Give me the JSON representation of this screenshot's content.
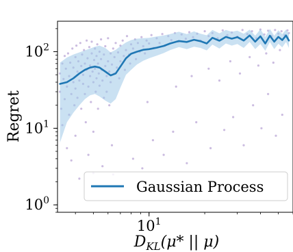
{
  "chart_data": {
    "type": "scatter",
    "x_scale": "log",
    "y_scale": "log",
    "xlabel": "D_KL(μ* || μ)",
    "ylabel": "Regret",
    "xlim": [
      3.2,
      60
    ],
    "ylim": [
      0.8,
      250
    ],
    "x_ticks": [
      {
        "value": 10,
        "base": "10",
        "exp": "1"
      }
    ],
    "y_ticks": [
      {
        "value": 1,
        "base": "10",
        "exp": "0"
      },
      {
        "value": 10,
        "base": "10",
        "exp": "1"
      },
      {
        "value": 100,
        "base": "10",
        "exp": "2"
      }
    ],
    "legend": {
      "position": "lower-right",
      "entries": [
        "Gaussian Process"
      ]
    },
    "colors": {
      "gp_line": "#1f77b4",
      "gp_band": "#9ec9e8",
      "scatter": "#b9a6d6"
    },
    "gp_mean": {
      "name": "Gaussian Process",
      "x": [
        3.3,
        3.6,
        3.9,
        4.2,
        4.5,
        4.8,
        5.1,
        5.4,
        5.8,
        6.2,
        6.6,
        7.0,
        7.5,
        8.0,
        8.6,
        9.3,
        10.0,
        11.0,
        12.0,
        13.0,
        14.5,
        16.0,
        17.5,
        19.0,
        20.5,
        22.0,
        24.0,
        26.0,
        28.0,
        30.0,
        32.5,
        35.0,
        37.5,
        40.0,
        42.5,
        45.0,
        47.5,
        50.0,
        52.5,
        55.0,
        57.0
      ],
      "y": [
        38,
        40,
        45,
        52,
        58,
        62,
        64,
        62,
        55,
        49,
        52,
        64,
        82,
        94,
        100,
        106,
        108,
        113,
        119,
        128,
        138,
        134,
        143,
        137,
        128,
        152,
        139,
        156,
        148,
        155,
        140,
        163,
        135,
        159,
        128,
        162,
        135,
        156,
        142,
        163,
        140
      ]
    },
    "gp_band": {
      "upper": [
        72,
        84,
        92,
        98,
        104,
        110,
        116,
        120,
        112,
        98,
        106,
        118,
        132,
        142,
        148,
        150,
        152,
        158,
        163,
        170,
        182,
        170,
        184,
        172,
        164,
        192,
        174,
        192,
        182,
        188,
        172,
        194,
        162,
        196,
        156,
        198,
        162,
        190,
        170,
        194,
        172
      ],
      "lower": [
        6.5,
        12,
        16,
        20,
        24,
        27,
        28,
        26,
        23,
        21,
        24,
        34,
        50,
        58,
        68,
        76,
        82,
        89,
        96,
        105,
        115,
        108,
        116,
        112,
        104,
        124,
        110,
        128,
        120,
        126,
        112,
        134,
        108,
        126,
        103,
        134,
        108,
        127,
        114,
        134,
        112
      ]
    },
    "scatter_points": [
      [
        3.3,
        30
      ],
      [
        3.3,
        52
      ],
      [
        3.35,
        18
      ],
      [
        3.4,
        70
      ],
      [
        3.4,
        11
      ],
      [
        3.45,
        44
      ],
      [
        3.5,
        88
      ],
      [
        3.5,
        24
      ],
      [
        3.55,
        60
      ],
      [
        3.6,
        35
      ],
      [
        3.6,
        5.5
      ],
      [
        3.65,
        95
      ],
      [
        3.7,
        48
      ],
      [
        3.7,
        15
      ],
      [
        3.75,
        72
      ],
      [
        3.8,
        28
      ],
      [
        3.8,
        3.8
      ],
      [
        3.85,
        110
      ],
      [
        3.9,
        40
      ],
      [
        3.9,
        62
      ],
      [
        3.95,
        20
      ],
      [
        4.0,
        85
      ],
      [
        4.0,
        33
      ],
      [
        4.0,
        8
      ],
      [
        4.05,
        120
      ],
      [
        4.1,
        55
      ],
      [
        4.1,
        25
      ],
      [
        4.15,
        75
      ],
      [
        4.2,
        42
      ],
      [
        4.2,
        2.2
      ],
      [
        4.25,
        130
      ],
      [
        4.3,
        65
      ],
      [
        4.3,
        18
      ],
      [
        4.35,
        92
      ],
      [
        4.4,
        38
      ],
      [
        4.4,
        50
      ],
      [
        4.45,
        105
      ],
      [
        4.5,
        28
      ],
      [
        4.5,
        70
      ],
      [
        4.55,
        12
      ],
      [
        4.6,
        140
      ],
      [
        4.6,
        58
      ],
      [
        4.65,
        82
      ],
      [
        4.7,
        35
      ],
      [
        4.7,
        4.5
      ],
      [
        4.75,
        115
      ],
      [
        4.8,
        48
      ],
      [
        4.8,
        66
      ],
      [
        4.85,
        22
      ],
      [
        4.9,
        95
      ],
      [
        4.9,
        135
      ],
      [
        4.95,
        55
      ],
      [
        5.0,
        40
      ],
      [
        5.0,
        9
      ],
      [
        5.05,
        78
      ],
      [
        5.1,
        60
      ],
      [
        5.1,
        110
      ],
      [
        5.15,
        30
      ],
      [
        5.2,
        88
      ],
      [
        5.2,
        45
      ],
      [
        5.25,
        125
      ],
      [
        5.3,
        70
      ],
      [
        5.3,
        18
      ],
      [
        5.35,
        52
      ],
      [
        5.4,
        100
      ],
      [
        5.4,
        36
      ],
      [
        5.5,
        80
      ],
      [
        5.5,
        145
      ],
      [
        5.55,
        58
      ],
      [
        5.6,
        42
      ],
      [
        5.6,
        3.2
      ],
      [
        5.7,
        92
      ],
      [
        5.7,
        25
      ],
      [
        5.8,
        65
      ],
      [
        5.8,
        118
      ],
      [
        5.9,
        48
      ],
      [
        5.9,
        30
      ],
      [
        6.0,
        75
      ],
      [
        6.0,
        150
      ],
      [
        6.1,
        55
      ],
      [
        6.1,
        20
      ],
      [
        6.2,
        95
      ],
      [
        6.2,
        40
      ],
      [
        6.3,
        68
      ],
      [
        6.3,
        6
      ],
      [
        6.4,
        110
      ],
      [
        6.5,
        52
      ],
      [
        6.5,
        85
      ],
      [
        6.6,
        130
      ],
      [
        6.7,
        62
      ],
      [
        6.8,
        98
      ],
      [
        6.9,
        45
      ],
      [
        7.0,
        120
      ],
      [
        7.0,
        75
      ],
      [
        7.2,
        140
      ],
      [
        7.3,
        88
      ],
      [
        7.4,
        58
      ],
      [
        7.5,
        105
      ],
      [
        7.6,
        160
      ],
      [
        7.8,
        92
      ],
      [
        7.9,
        70
      ],
      [
        8.0,
        125
      ],
      [
        8.2,
        110
      ],
      [
        8.4,
        145
      ],
      [
        8.5,
        80
      ],
      [
        8.7,
        130
      ],
      [
        8.9,
        100
      ],
      [
        9.1,
        155
      ],
      [
        9.3,
        118
      ],
      [
        9.5,
        95
      ],
      [
        9.7,
        140
      ],
      [
        10.0,
        128
      ],
      [
        10.3,
        165
      ],
      [
        10.6,
        112
      ],
      [
        11.0,
        150
      ],
      [
        11.4,
        130
      ],
      [
        11.8,
        170
      ],
      [
        12.2,
        120
      ],
      [
        12.7,
        160
      ],
      [
        13.2,
        142
      ],
      [
        13.8,
        175
      ],
      [
        14.4,
        135
      ],
      [
        15.0,
        168
      ],
      [
        15.8,
        148
      ],
      [
        16.5,
        180
      ],
      [
        17.3,
        155
      ],
      [
        18.2,
        172
      ],
      [
        19.0,
        140
      ],
      [
        20.0,
        185
      ],
      [
        21.0,
        160
      ],
      [
        22.0,
        175
      ],
      [
        23.5,
        150
      ],
      [
        25.0,
        190
      ],
      [
        26.5,
        165
      ],
      [
        28.0,
        178
      ],
      [
        30.0,
        158
      ],
      [
        32.0,
        192
      ],
      [
        34.0,
        170
      ],
      [
        36.0,
        185
      ],
      [
        38.0,
        150
      ],
      [
        40.0,
        195
      ],
      [
        42.0,
        168
      ],
      [
        44.0,
        188
      ],
      [
        46.0,
        160
      ],
      [
        48.0,
        192
      ],
      [
        50.0,
        172
      ],
      [
        52.0,
        185
      ],
      [
        54.0,
        165
      ],
      [
        56.0,
        190
      ],
      [
        57.0,
        175
      ],
      [
        5.0,
        2.6
      ],
      [
        6.4,
        2.5
      ],
      [
        8.2,
        4
      ],
      [
        9.2,
        3.0
      ],
      [
        10.5,
        7
      ],
      [
        12.0,
        4.5
      ],
      [
        13.5,
        9
      ],
      [
        16.0,
        3.5
      ],
      [
        18.0,
        12
      ],
      [
        21.5,
        5.5
      ],
      [
        25.5,
        9.5
      ],
      [
        28.5,
        14
      ],
      [
        32.5,
        6
      ],
      [
        36.5,
        20
      ],
      [
        40.5,
        10
      ],
      [
        44.0,
        28
      ],
      [
        48.5,
        8
      ],
      [
        52.5,
        15
      ],
      [
        9.8,
        22
      ],
      [
        14.0,
        35
      ],
      [
        17.0,
        48
      ],
      [
        21.0,
        60
      ],
      [
        24.0,
        42
      ],
      [
        27.5,
        75
      ],
      [
        31.0,
        52
      ],
      [
        35.0,
        85
      ],
      [
        39.0,
        66
      ],
      [
        43.0,
        95
      ],
      [
        47.0,
        72
      ],
      [
        51.0,
        105
      ]
    ]
  }
}
